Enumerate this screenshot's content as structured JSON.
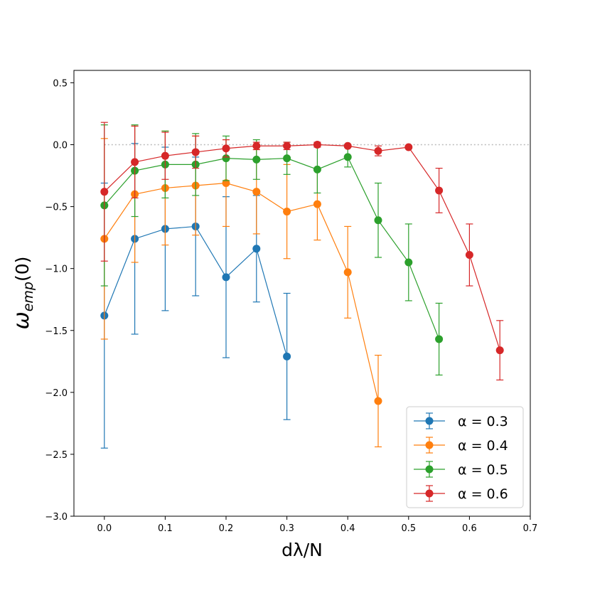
{
  "chart_data": {
    "type": "errorbar-line",
    "xlabel": "dλ/N",
    "ylabel": "ω",
    "ylabel_sub": "emp",
    "ylabel_tail": "(0)",
    "xlim": [
      -0.05,
      0.7
    ],
    "ylim": [
      -3.0,
      0.6
    ],
    "xticks": [
      {
        "value": 0.0,
        "label": "0.0"
      },
      0.1,
      0.2,
      0.3,
      0.4,
      0.5,
      0.6,
      0.7
    ],
    "yticks": [
      {
        "value": -3.0,
        "label": "−3.0"
      },
      {
        "value": -2.5,
        "label": "−2.5"
      },
      {
        "value": -2.0,
        "label": "−2.0"
      },
      {
        "value": -1.5,
        "label": "−1.5"
      },
      {
        "value": -1.0,
        "label": "−1.0"
      },
      {
        "value": -0.5,
        "label": "−0.5"
      },
      {
        "value": 0.0,
        "label": "0.0"
      },
      0.5
    ],
    "reference_line": {
      "y": 0,
      "color": "#bbbbbb"
    },
    "legend": "lower right",
    "series": [
      {
        "name": "α = 0.3",
        "color": "#1f77b4",
        "x": [
          0.0,
          0.05,
          0.1,
          0.15,
          0.2,
          0.25,
          0.3
        ],
        "values": [
          -1.38,
          -0.76,
          -0.68,
          -0.66,
          -1.07,
          -0.84,
          -1.71
        ],
        "errors": [
          1.07,
          0.77,
          0.66,
          0.56,
          0.65,
          0.43,
          0.51
        ]
      },
      {
        "name": "α = 0.4",
        "color": "#ff7f0e",
        "x": [
          0.0,
          0.05,
          0.1,
          0.15,
          0.2,
          0.25,
          0.3,
          0.35,
          0.4,
          0.45
        ],
        "values": [
          -0.76,
          -0.4,
          -0.35,
          -0.33,
          -0.31,
          -0.38,
          -0.54,
          -0.48,
          -1.03,
          -2.07
        ],
        "errors": [
          0.81,
          0.55,
          0.46,
          0.4,
          0.35,
          0.34,
          0.38,
          0.29,
          0.37,
          0.37
        ]
      },
      {
        "name": "α = 0.5",
        "color": "#2ca02c",
        "x": [
          0.0,
          0.05,
          0.1,
          0.15,
          0.2,
          0.25,
          0.3,
          0.35,
          0.4,
          0.45,
          0.5,
          0.55
        ],
        "values": [
          -0.49,
          -0.21,
          -0.16,
          -0.16,
          -0.11,
          -0.12,
          -0.11,
          -0.2,
          -0.1,
          -0.61,
          -0.95,
          -1.57
        ],
        "errors": [
          0.65,
          0.37,
          0.27,
          0.25,
          0.18,
          0.16,
          0.13,
          0.19,
          0.08,
          0.3,
          0.31,
          0.29
        ]
      },
      {
        "name": "α = 0.6",
        "color": "#d62728",
        "x": [
          0.0,
          0.05,
          0.1,
          0.15,
          0.2,
          0.25,
          0.3,
          0.35,
          0.4,
          0.45,
          0.5,
          0.55,
          0.6,
          0.65
        ],
        "values": [
          -0.38,
          -0.14,
          -0.09,
          -0.06,
          -0.03,
          -0.01,
          -0.01,
          0.0,
          -0.01,
          -0.05,
          -0.02,
          -0.37,
          -0.89,
          -1.66
        ],
        "errors": [
          0.56,
          0.29,
          0.19,
          0.13,
          0.07,
          0.03,
          0.03,
          0.02,
          0.01,
          0.04,
          0.01,
          0.18,
          0.25,
          0.24
        ]
      }
    ]
  }
}
